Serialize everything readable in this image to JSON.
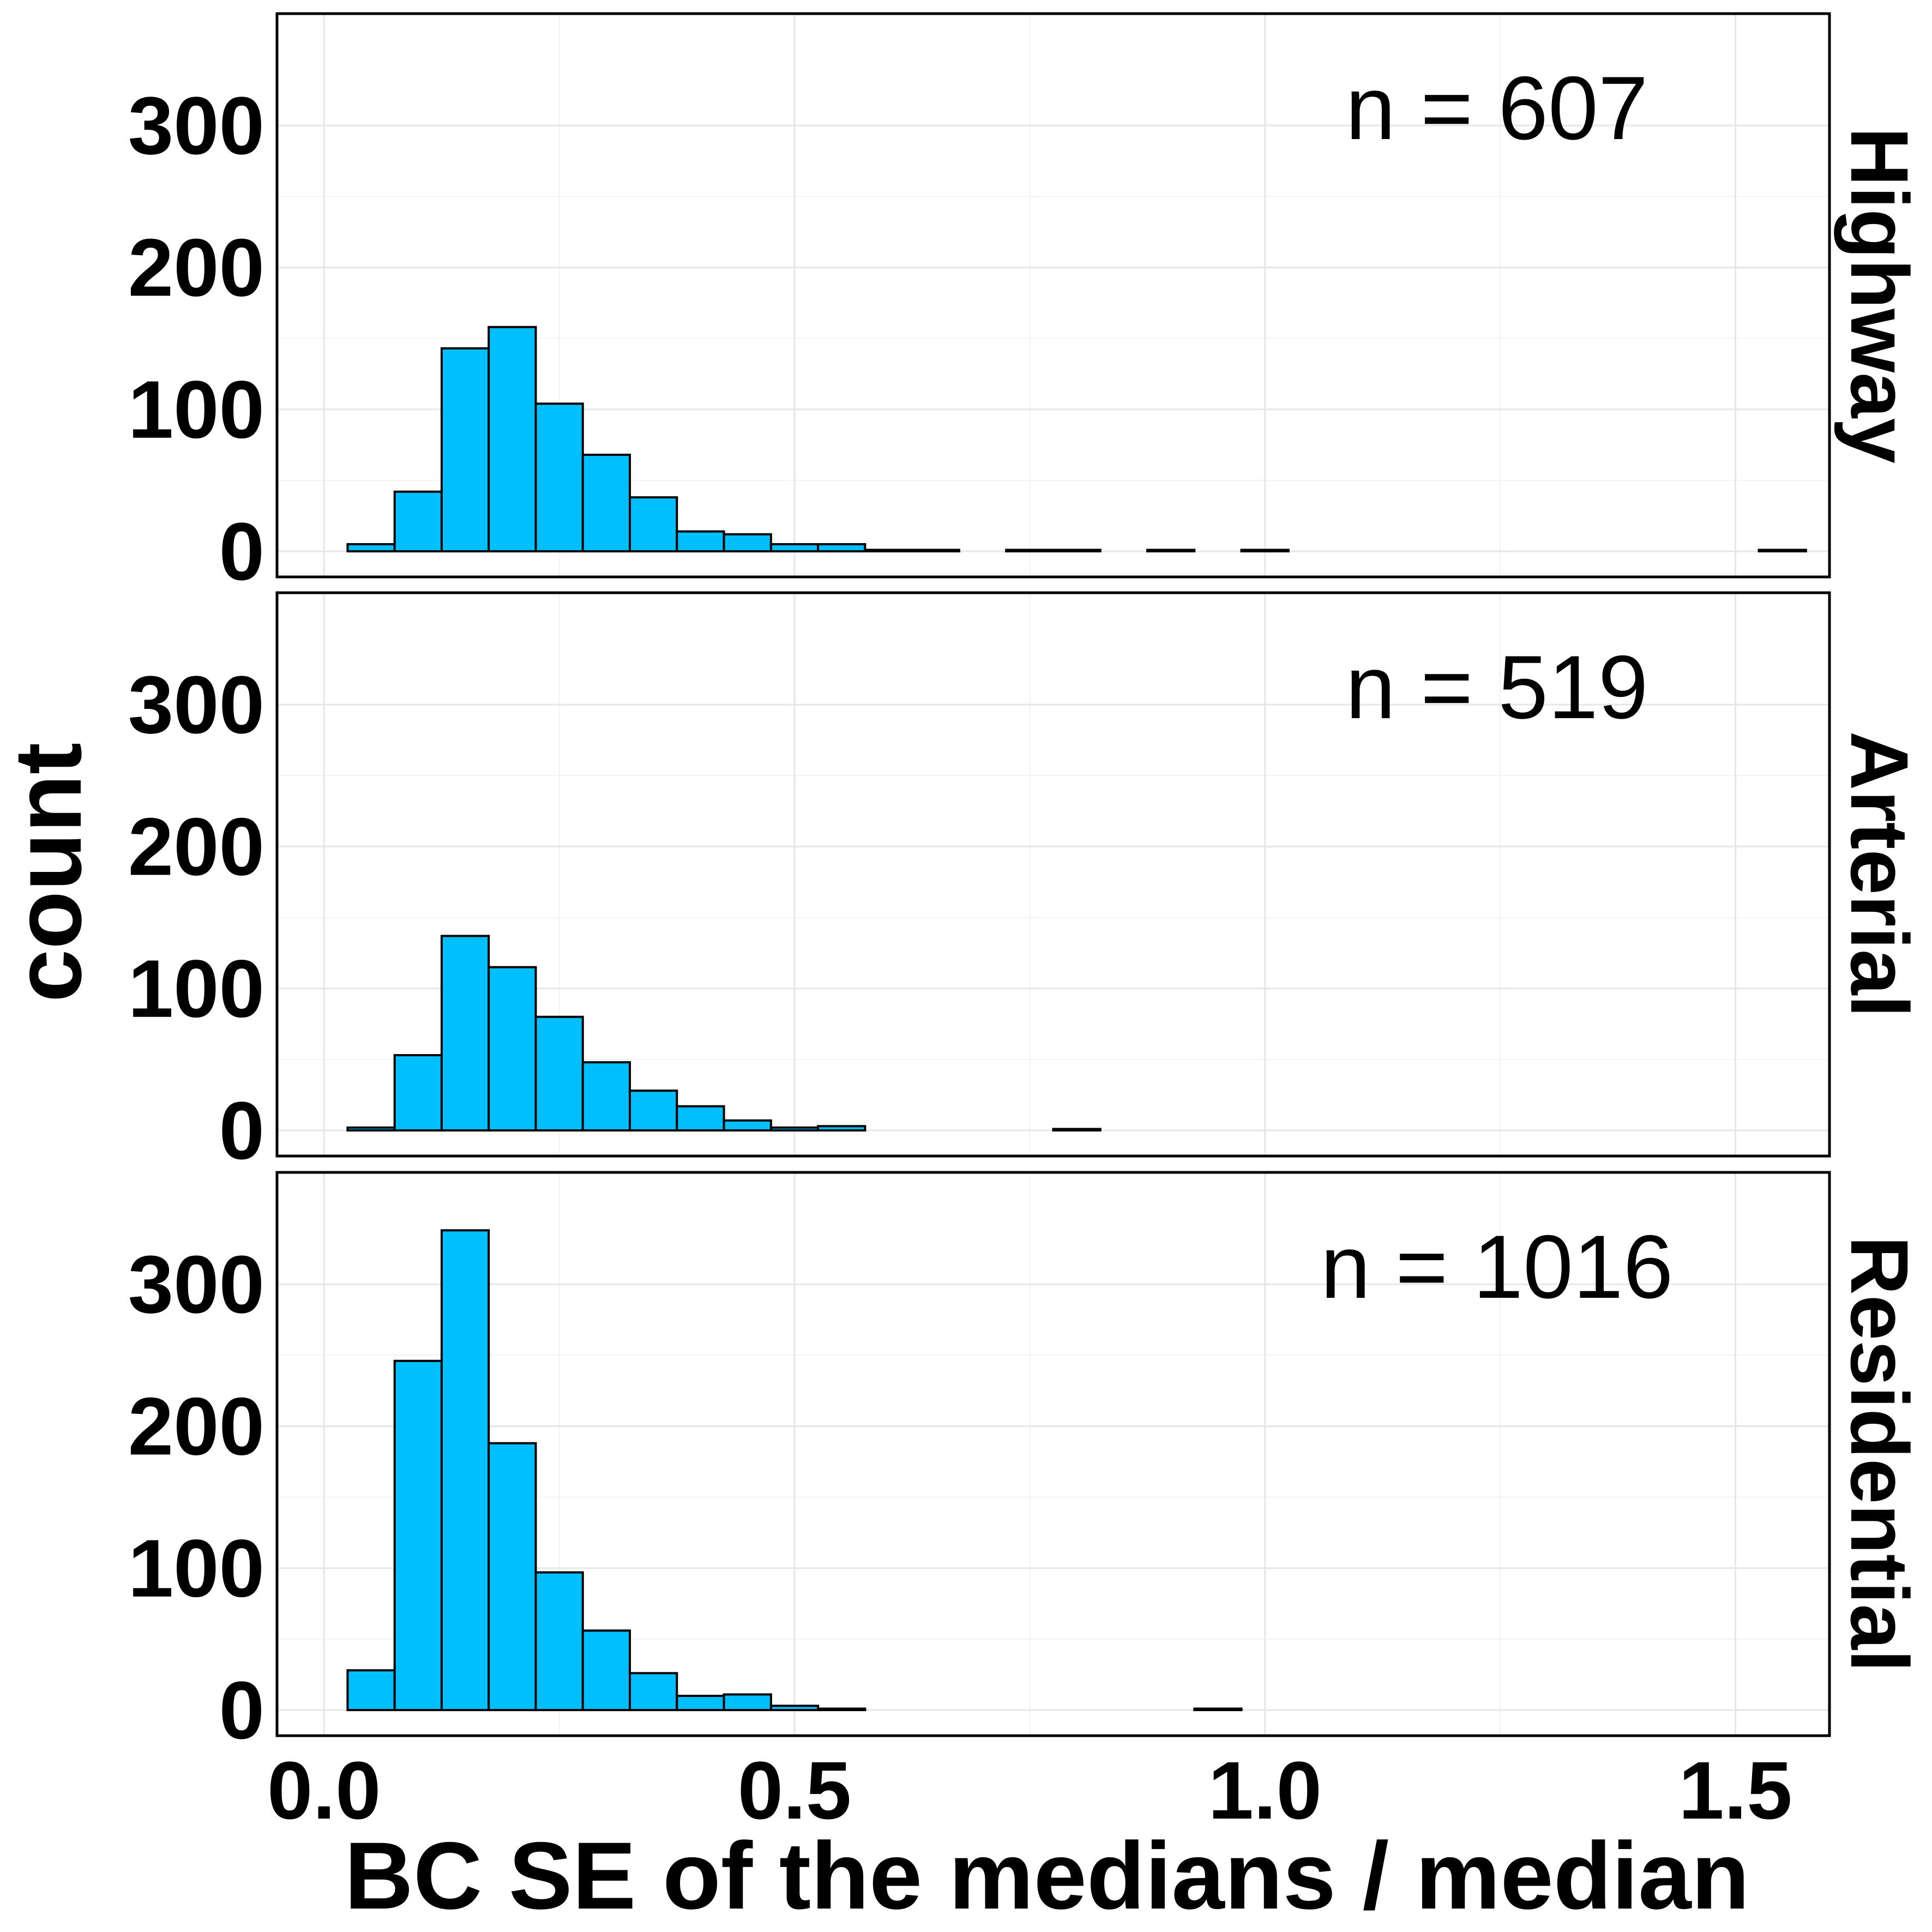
{
  "chart_data": {
    "type": "bar",
    "subtype": "histogram-faceted",
    "xlabel": "BC SE of the  medians / median",
    "ylabel": "count",
    "xlim": [
      -0.05,
      1.6
    ],
    "ylim": [
      0,
      350
    ],
    "x_ticks": [
      0.0,
      0.5,
      1.0,
      1.5
    ],
    "x_tick_labels": [
      "0.0",
      "0.5",
      "1.0",
      "1.5"
    ],
    "y_ticks": [
      0,
      100,
      200,
      300
    ],
    "y_tick_labels": [
      "0",
      "100",
      "200",
      "300"
    ],
    "grid": true,
    "bin_start": 0.025,
    "bin_width": 0.05,
    "bar_color": "#00BFFF",
    "bar_outline": "#000000",
    "panels": [
      {
        "strip": "Highway",
        "annotation": "n = 607",
        "values": [
          5,
          42,
          143,
          158,
          104,
          68,
          38,
          14,
          12,
          5,
          5,
          1,
          1,
          0,
          1,
          1,
          0,
          1,
          0,
          1,
          0,
          0,
          0,
          0,
          0,
          0,
          0,
          0,
          0,
          0,
          1
        ]
      },
      {
        "strip": "Arterial",
        "annotation": "n = 519",
        "values": [
          2,
          53,
          137,
          115,
          80,
          48,
          28,
          17,
          7,
          2,
          3,
          0,
          0,
          0,
          0,
          1,
          0,
          0,
          0,
          0,
          0,
          0,
          0,
          0,
          0,
          0,
          0,
          0,
          0,
          0,
          0
        ]
      },
      {
        "strip": "Residential",
        "annotation": "n = 1016",
        "values": [
          28,
          246,
          338,
          188,
          97,
          56,
          26,
          10,
          11,
          3,
          1,
          0,
          0,
          0,
          0,
          0,
          0,
          0,
          1,
          0,
          0,
          0,
          0,
          0,
          0,
          0,
          0,
          0,
          0,
          0,
          0
        ]
      }
    ]
  }
}
